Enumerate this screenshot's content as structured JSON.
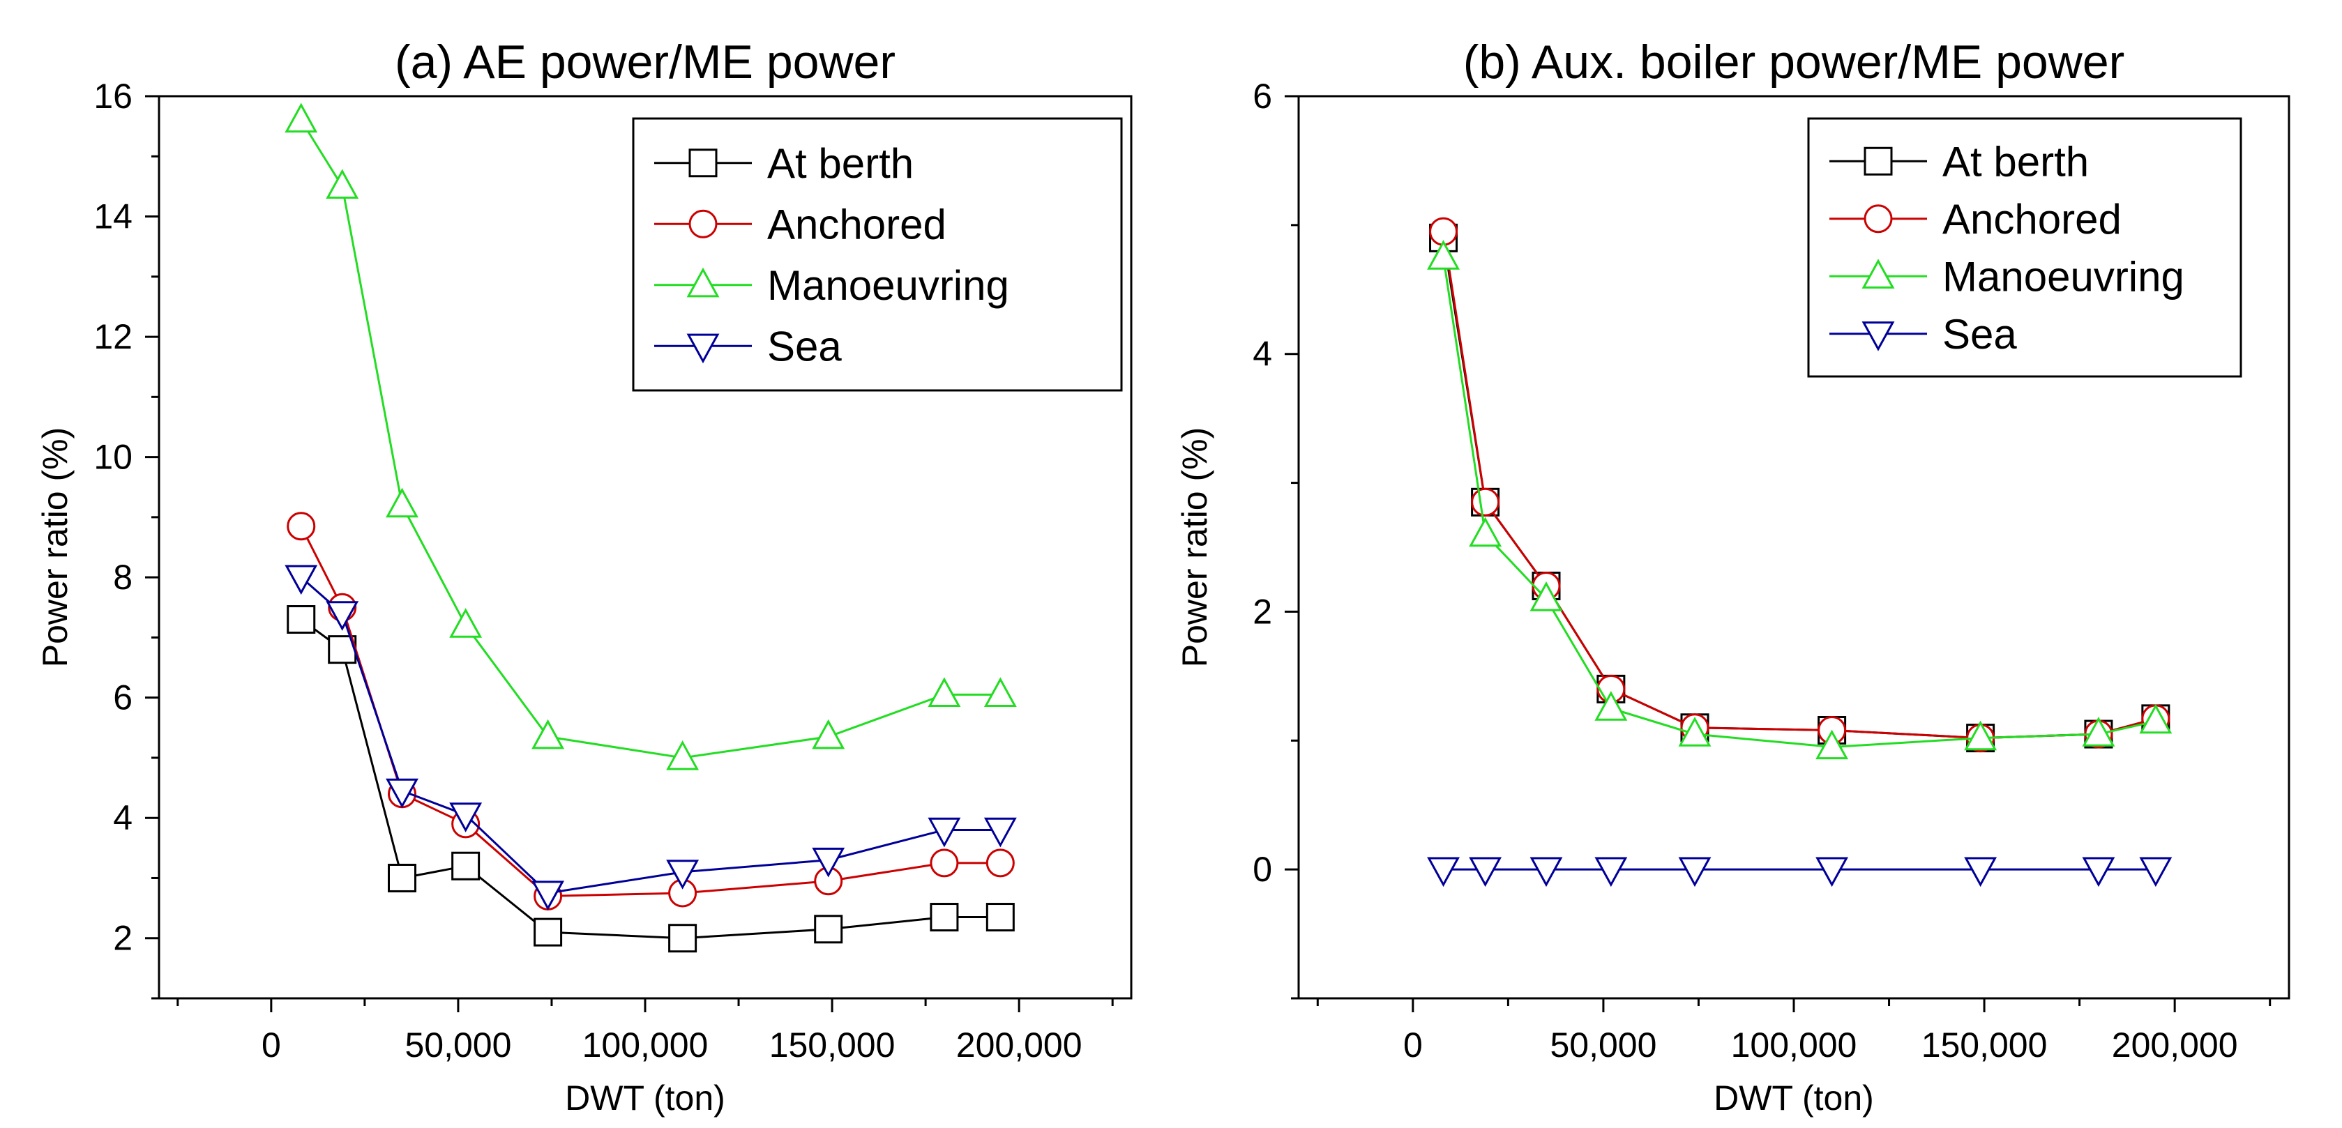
{
  "colors": {
    "at_berth": "#000000",
    "anchored": "#cc0000",
    "manoeuvring": "#22dd22",
    "sea": "#000099",
    "axis": "#000000",
    "background": "#ffffff"
  },
  "chart_data": [
    {
      "type": "line",
      "title": "(a) AE power/ME power",
      "xlabel": "DWT (ton)",
      "ylabel": "Power ratio (%)",
      "xlim": [
        -30000,
        230000
      ],
      "ylim": [
        1,
        16
      ],
      "xticks": [
        0,
        50000,
        100000,
        150000,
        200000
      ],
      "xtick_labels": [
        "0",
        "50,000",
        "100,000",
        "150,000",
        "200,000"
      ],
      "yticks": [
        2,
        4,
        6,
        8,
        10,
        12,
        14,
        16
      ],
      "ytick_labels": [
        "2",
        "4",
        "6",
        "8",
        "10",
        "12",
        "14",
        "16"
      ],
      "legend_position": "top-right",
      "series": [
        {
          "name": "At berth",
          "marker": "square",
          "color_key": "at_berth",
          "x": [
            8000,
            19000,
            35000,
            52000,
            74000,
            110000,
            149000,
            180000,
            195000
          ],
          "y": [
            7.3,
            6.8,
            3.0,
            3.2,
            2.1,
            2.0,
            2.15,
            2.35,
            2.35
          ]
        },
        {
          "name": "Anchored",
          "marker": "circle",
          "color_key": "anchored",
          "x": [
            8000,
            19000,
            35000,
            52000,
            74000,
            110000,
            149000,
            180000,
            195000
          ],
          "y": [
            8.85,
            7.5,
            4.4,
            3.9,
            2.7,
            2.75,
            2.95,
            3.25,
            3.25
          ]
        },
        {
          "name": "Manoeuvring",
          "marker": "triangle-up",
          "color_key": "manoeuvring",
          "x": [
            8000,
            19000,
            35000,
            52000,
            74000,
            110000,
            149000,
            180000,
            195000
          ],
          "y": [
            15.6,
            14.5,
            9.2,
            7.2,
            5.35,
            5.0,
            5.35,
            6.05,
            6.05
          ]
        },
        {
          "name": "Sea",
          "marker": "triangle-down",
          "color_key": "sea",
          "x": [
            8000,
            19000,
            35000,
            52000,
            74000,
            110000,
            149000,
            180000,
            195000
          ],
          "y": [
            8.0,
            7.4,
            4.45,
            4.05,
            2.75,
            3.1,
            3.3,
            3.8,
            3.8
          ]
        }
      ]
    },
    {
      "type": "line",
      "title": "(b) Aux. boiler power/ME power",
      "xlabel": "DWT (ton)",
      "ylabel": "Power ratio (%)",
      "xlim": [
        -30000,
        230000
      ],
      "ylim": [
        -1,
        6
      ],
      "xticks": [
        0,
        50000,
        100000,
        150000,
        200000
      ],
      "xtick_labels": [
        "0",
        "50,000",
        "100,000",
        "150,000",
        "200,000"
      ],
      "yticks": [
        0,
        2,
        4,
        6
      ],
      "ytick_labels": [
        "0",
        "2",
        "4",
        "6"
      ],
      "legend_position": "top-right",
      "series": [
        {
          "name": "At berth",
          "marker": "square",
          "color_key": "at_berth",
          "x": [
            8000,
            19000,
            35000,
            52000,
            74000,
            110000,
            149000,
            180000,
            195000
          ],
          "y": [
            4.9,
            2.85,
            2.2,
            1.4,
            1.1,
            1.08,
            1.02,
            1.05,
            1.17
          ]
        },
        {
          "name": "Anchored",
          "marker": "circle",
          "color_key": "anchored",
          "x": [
            8000,
            19000,
            35000,
            52000,
            74000,
            110000,
            149000,
            180000,
            195000
          ],
          "y": [
            4.95,
            2.85,
            2.2,
            1.4,
            1.1,
            1.08,
            1.02,
            1.05,
            1.17
          ]
        },
        {
          "name": "Manoeuvring",
          "marker": "triangle-up",
          "color_key": "manoeuvring",
          "x": [
            8000,
            19000,
            35000,
            52000,
            74000,
            110000,
            149000,
            180000,
            195000
          ],
          "y": [
            4.75,
            2.6,
            2.1,
            1.25,
            1.05,
            0.95,
            1.02,
            1.05,
            1.15
          ]
        },
        {
          "name": "Sea",
          "marker": "triangle-down",
          "color_key": "sea",
          "x": [
            8000,
            19000,
            35000,
            52000,
            74000,
            110000,
            149000,
            180000,
            195000
          ],
          "y": [
            0,
            0,
            0,
            0,
            0,
            0,
            0,
            0,
            0
          ]
        }
      ]
    }
  ]
}
